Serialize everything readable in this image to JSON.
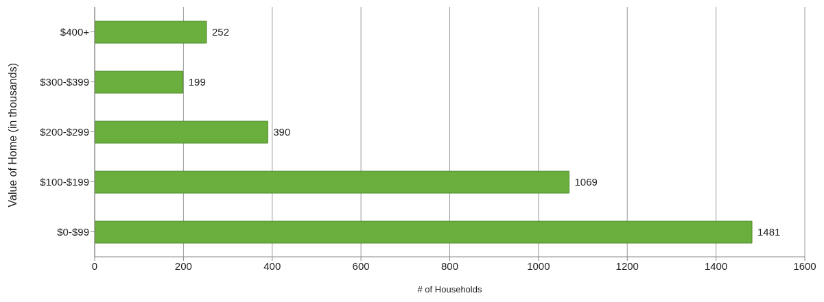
{
  "chart_data": {
    "type": "bar",
    "orientation": "horizontal",
    "xlabel": "# of Households",
    "ylabel": "Value of Home (in thousands)",
    "categories": [
      "$400+",
      "$300-$399",
      "$200-$299",
      "$100-$199",
      "$0-$99"
    ],
    "values": [
      252,
      199,
      390,
      1069,
      1481
    ],
    "color": "#6aae3e",
    "xlim": [
      0,
      1600
    ],
    "xticks": [
      0,
      200,
      400,
      600,
      800,
      1000,
      1200,
      1400,
      1600
    ],
    "grid": "x",
    "data_labels": true,
    "legend": false
  }
}
